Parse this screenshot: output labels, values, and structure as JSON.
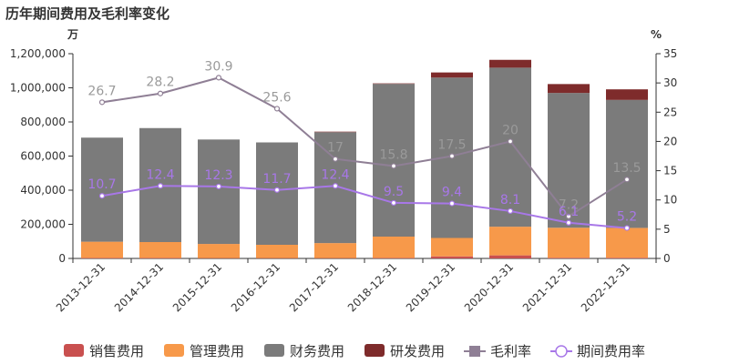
{
  "title": "历年期间费用及毛利率变化",
  "chart_data": {
    "type": "bar",
    "stacked": true,
    "categories": [
      "2013-12-31",
      "2014-12-31",
      "2015-12-31",
      "2016-12-31",
      "2017-12-31",
      "2018-12-31",
      "2019-12-31",
      "2020-12-31",
      "2021-12-31",
      "2022-12-31"
    ],
    "y_left": {
      "unit": "万",
      "min": 0,
      "max": 1200000,
      "ticks": [
        0,
        200000,
        400000,
        600000,
        800000,
        1000000,
        1200000
      ],
      "tick_labels": [
        "0",
        "200,000",
        "400,000",
        "600,000",
        "800,000",
        "1,000,000",
        "1,200,000"
      ]
    },
    "y_right": {
      "unit": "%",
      "min": 0,
      "max": 35,
      "ticks": [
        0,
        5,
        10,
        15,
        20,
        25,
        30,
        35
      ],
      "tick_labels": [
        "0",
        "5",
        "10",
        "15",
        "20",
        "25",
        "30",
        "35"
      ]
    },
    "series": [
      {
        "name": "销售费用",
        "kind": "bar",
        "color": "#c9504f",
        "values": [
          3000,
          3000,
          2000,
          2000,
          2000,
          3000,
          12000,
          18000,
          4000,
          4000
        ]
      },
      {
        "name": "管理费用",
        "kind": "bar",
        "color": "#f7994a",
        "values": [
          95000,
          93000,
          83000,
          78000,
          88000,
          125000,
          108000,
          168000,
          176000,
          175000
        ]
      },
      {
        "name": "财务费用",
        "kind": "bar",
        "color": "#7b7b7b",
        "values": [
          610000,
          668000,
          612000,
          600000,
          650000,
          895000,
          940000,
          932000,
          790000,
          750000
        ]
      },
      {
        "name": "研发费用",
        "kind": "bar",
        "color": "#7e2b2b",
        "values": [
          0,
          0,
          0,
          0,
          3000,
          3000,
          30000,
          46000,
          52000,
          62000
        ]
      },
      {
        "name": "毛利率",
        "kind": "line",
        "axis": "right",
        "color": "#8f7f95",
        "values": [
          26.7,
          28.2,
          30.9,
          25.6,
          17,
          15.8,
          17.5,
          20,
          7.2,
          13.5
        ],
        "labels": [
          "26.7",
          "28.2",
          "30.9",
          "25.6",
          "17",
          "15.8",
          "17.5",
          "20",
          "7.2",
          "13.5"
        ]
      },
      {
        "name": "期间费用率",
        "kind": "line",
        "axis": "right",
        "color": "#a877e8",
        "values": [
          10.7,
          12.4,
          12.3,
          11.7,
          12.4,
          9.5,
          9.4,
          8.1,
          6.1,
          5.2
        ],
        "labels": [
          "10.7",
          "12.4",
          "12.3",
          "11.7",
          "12.4",
          "9.5",
          "9.4",
          "8.1",
          "6.1",
          "5.2"
        ]
      }
    ],
    "legend_position": "bottom",
    "grid": false
  }
}
